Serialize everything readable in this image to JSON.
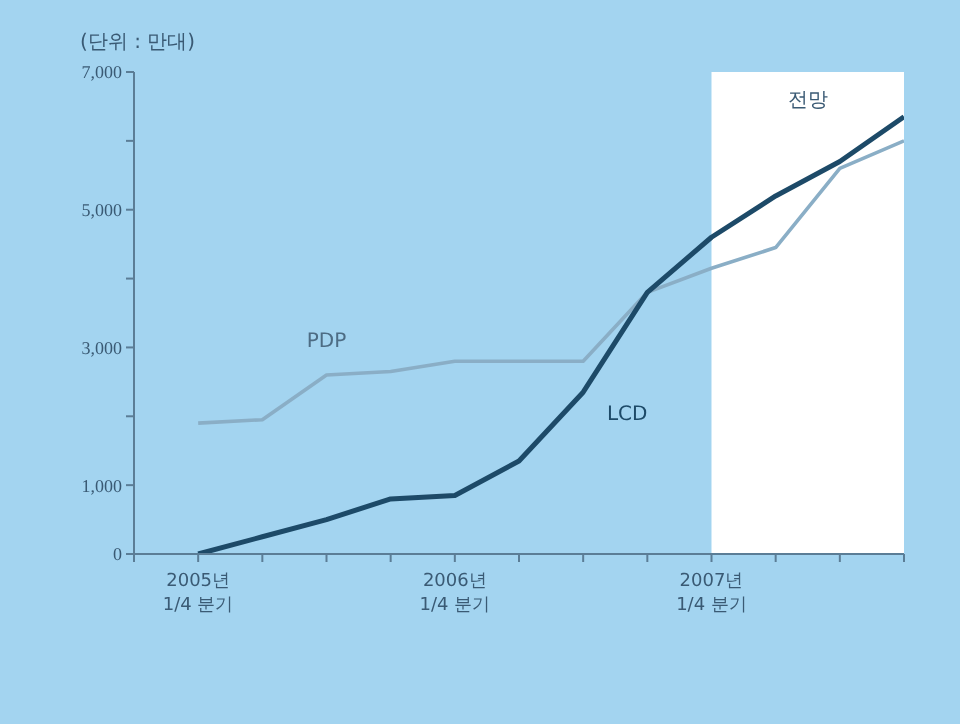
{
  "chart_data": {
    "type": "line",
    "ylabel": "(단위 : 만대)",
    "x": [
      "2005-01",
      "2005-04",
      "2005-07",
      "2005-10",
      "2006-01",
      "2006-04",
      "2006-07",
      "2006-10",
      "2007-01",
      "2007-04",
      "2007-07",
      "2007-10"
    ],
    "xlim": [
      "2004-10",
      "2007-10"
    ],
    "xticks": [
      {
        "value": "2004-10",
        "label": null
      },
      {
        "value": "2005-01",
        "label": "2005년\n1/4 분기"
      },
      {
        "value": "2005-04",
        "label": null
      },
      {
        "value": "2005-07",
        "label": null
      },
      {
        "value": "2005-10",
        "label": null
      },
      {
        "value": "2006-01",
        "label": "2006년\n1/4 분기"
      },
      {
        "value": "2006-04",
        "label": null
      },
      {
        "value": "2006-07",
        "label": null
      },
      {
        "value": "2006-10",
        "label": null
      },
      {
        "value": "2007-01",
        "label": "2007년\n1/4 분기"
      },
      {
        "value": "2007-04",
        "label": null
      },
      {
        "value": "2007-07",
        "label": null
      },
      {
        "value": "2007-10",
        "label": null
      }
    ],
    "ylim": [
      0,
      7000
    ],
    "yticks": [
      {
        "value": 0,
        "label": "0"
      },
      {
        "value": 1000,
        "label": "1,000"
      },
      {
        "value": 2000,
        "label": null
      },
      {
        "value": 3000,
        "label": "3,000"
      },
      {
        "value": 4000,
        "label": null
      },
      {
        "value": 5000,
        "label": "5,000"
      },
      {
        "value": 6000,
        "label": null
      },
      {
        "value": 7000,
        "label": "7,000"
      }
    ],
    "series": [
      {
        "name": "PDP",
        "color": "#8aaec6",
        "values": [
          1900,
          1950,
          2600,
          2650,
          2800,
          2800,
          2800,
          3800,
          4150,
          4450,
          5600,
          6000
        ]
      },
      {
        "name": "LCD",
        "color": "#1d4a68",
        "values": [
          0,
          250,
          500,
          800,
          850,
          1350,
          2350,
          3800,
          4600,
          5200,
          5700,
          6350
        ]
      }
    ],
    "bands": [
      {
        "axis": "x",
        "from": "2007-01",
        "to": "2007-10",
        "label": "전망",
        "color": "#ffffff"
      }
    ],
    "grid": false,
    "legend": false,
    "marker": "none",
    "line_style": "solid"
  }
}
